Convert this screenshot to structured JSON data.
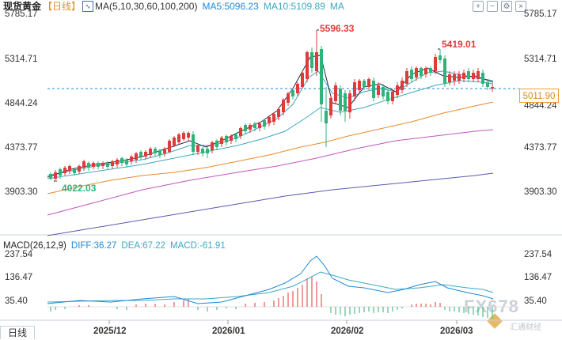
{
  "main_header": {
    "title": "现货黄金",
    "period": "【日线】",
    "ma_label": "MA(5,10,30,60,100,200)",
    "ma5": "MA5:5096.23",
    "ma10": "MA10:5109.89",
    "ma_extra": "MA"
  },
  "price_axis": [
    "5785.17",
    "5314.71",
    "4844.24",
    "4373.77",
    "3903.30"
  ],
  "current_price": "5011.90",
  "annotations": {
    "high": "5596.33",
    "high2": "5419.01",
    "low": "4022.03"
  },
  "macd_header": {
    "label": "MACD(26,12,9)",
    "diff": "DIFF:36.27",
    "dea": "DEA:67.22",
    "macd": "MACD:-61.91"
  },
  "macd_axis": [
    "237.54",
    "136.47",
    "35.40"
  ],
  "dates": [
    "2025/12",
    "2026/01",
    "2026/02",
    "2026/03"
  ],
  "bottom_tab": "日线",
  "watermark": {
    "main": "FX678",
    "sub": "汇通财经"
  },
  "colors": {
    "up": "#e03a3a",
    "down": "#2fb37a",
    "ma5": "#1a2b3c",
    "ma10": "#3fa7c0",
    "ma30": "#e98a2e",
    "ma60": "#c056c0",
    "ma100": "#5a5ab0",
    "price_line": "#1f8ad8"
  }
}
